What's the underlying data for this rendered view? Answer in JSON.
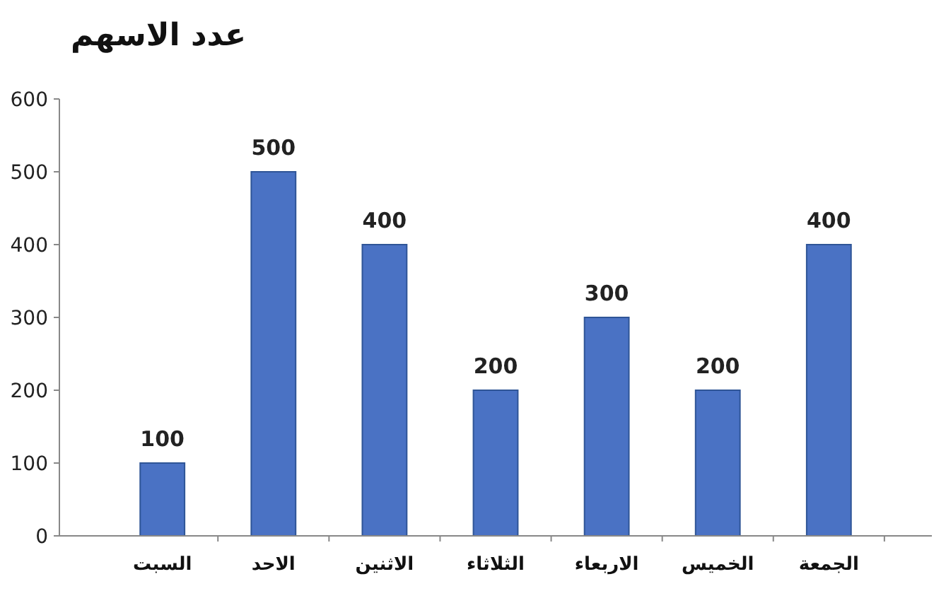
{
  "chart_data": {
    "type": "bar",
    "title": "عدد الاسهم",
    "categories": [
      "السبت",
      "الاحد",
      "الاثنين",
      "الثلاثاء",
      "الاربعاء",
      "الخميس",
      "الجمعة"
    ],
    "values": [
      100,
      500,
      400,
      200,
      300,
      200,
      400
    ],
    "color": "#4a72c4",
    "ylim": [
      0,
      600
    ],
    "yticks": [
      0,
      100,
      200,
      300,
      400,
      500,
      600
    ],
    "grid": false,
    "data_labels": true
  }
}
